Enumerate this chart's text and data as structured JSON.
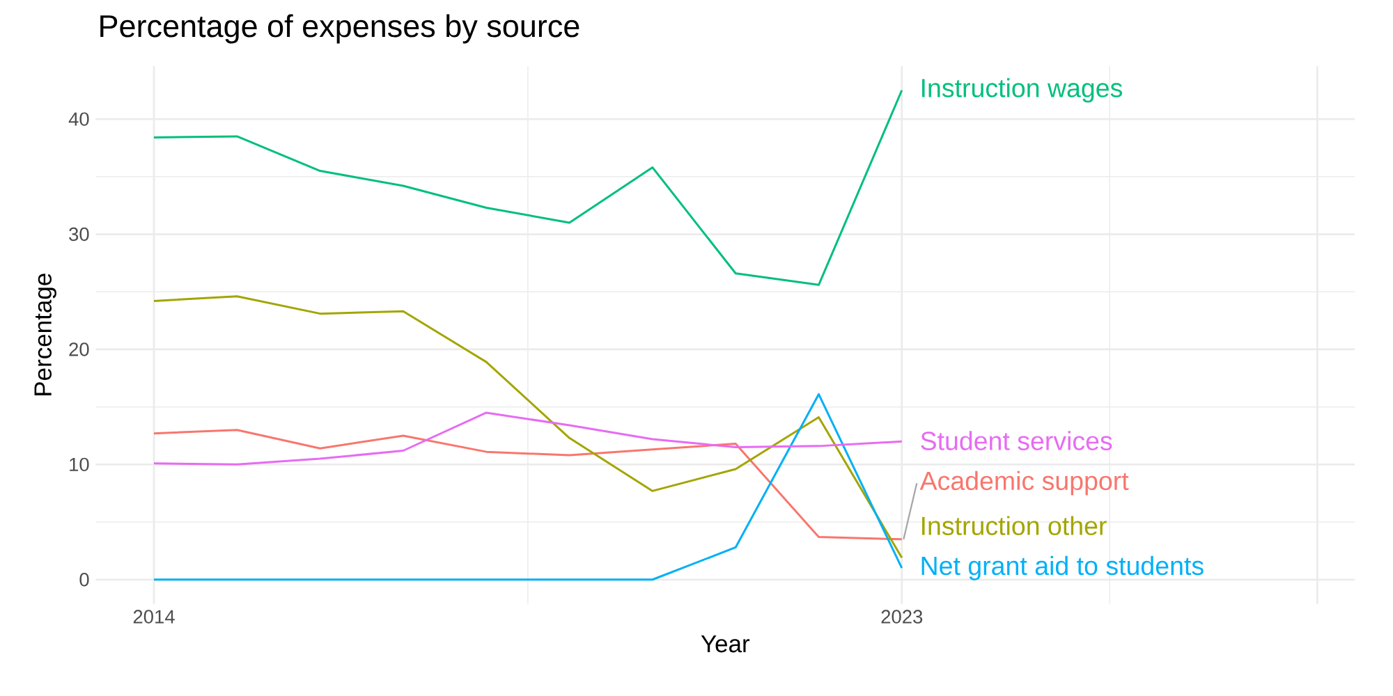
{
  "chart_data": {
    "type": "line",
    "title": "Percentage of expenses by source",
    "xlabel": "Year",
    "ylabel": "Percentage",
    "x": [
      2014,
      2015,
      2016,
      2017,
      2018,
      2019,
      2020,
      2021,
      2022,
      2023
    ],
    "series": [
      {
        "name": "Academic support",
        "color": "#f8766d",
        "values": [
          12.7,
          13.0,
          11.4,
          12.5,
          11.1,
          10.8,
          11.3,
          11.8,
          3.7,
          3.5
        ]
      },
      {
        "name": "Instruction other",
        "color": "#a3a500",
        "values": [
          24.2,
          24.6,
          23.1,
          23.3,
          18.9,
          12.3,
          7.7,
          9.6,
          14.1,
          1.9
        ]
      },
      {
        "name": "Instruction wages",
        "color": "#00bf7d",
        "values": [
          38.4,
          38.5,
          35.5,
          34.2,
          32.3,
          31.0,
          35.8,
          26.6,
          25.6,
          42.5
        ]
      },
      {
        "name": "Net grant aid to students",
        "color": "#00b0f6",
        "values": [
          0,
          0,
          0,
          0,
          0,
          0,
          0,
          2.8,
          16.1,
          1.0
        ]
      },
      {
        "name": "Student services",
        "color": "#e76bf3",
        "values": [
          10.1,
          10.0,
          10.5,
          11.2,
          14.5,
          13.4,
          12.2,
          11.5,
          11.6,
          12.0
        ]
      }
    ],
    "xlim": [
      2013.3,
      2028.45
    ],
    "xticks": [
      2014,
      2023,
      {
        "value": 2028,
        "label": null
      }
    ],
    "ylim": [
      -2.1,
      44.6
    ],
    "yticks": [
      0,
      10,
      20,
      30,
      40
    ],
    "grid": true
  }
}
